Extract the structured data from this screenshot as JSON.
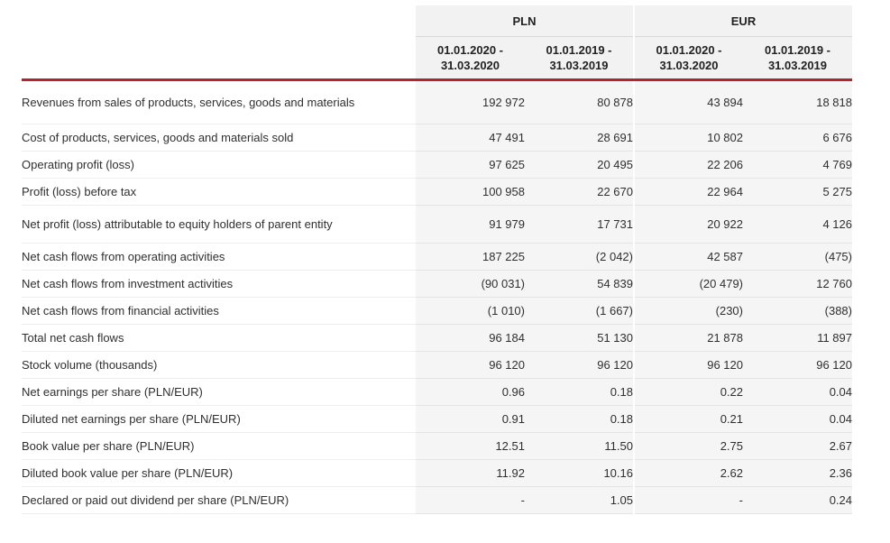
{
  "header": {
    "currency_groups": [
      "PLN",
      "EUR"
    ],
    "periods": [
      {
        "line1": "01.01.2020 -",
        "line2": "31.03.2020"
      },
      {
        "line1": "01.01.2019 -",
        "line2": "31.03.2019"
      },
      {
        "line1": "01.01.2020 -",
        "line2": "31.03.2020"
      },
      {
        "line1": "01.01.2019 -",
        "line2": "31.03.2019"
      }
    ]
  },
  "rows": [
    {
      "label": "Revenues from sales of products, services, goods and materials",
      "values": [
        "192 972",
        "80 878",
        "43 894",
        "18 818"
      ]
    },
    {
      "label": "Cost of products, services, goods and materials sold",
      "values": [
        "47 491",
        "28 691",
        "10 802",
        "6 676"
      ]
    },
    {
      "label": "Operating profit (loss)",
      "values": [
        "97 625",
        "20 495",
        "22 206",
        "4 769"
      ]
    },
    {
      "label": "Profit (loss) before tax",
      "values": [
        "100 958",
        "22 670",
        "22 964",
        "5 275"
      ]
    },
    {
      "label": "Net profit (loss) attributable to equity holders of parent entity",
      "values": [
        "91 979",
        "17 731",
        "20 922",
        "4 126"
      ]
    },
    {
      "label": "Net cash flows from operating activities",
      "values": [
        "187 225",
        "(2 042)",
        "42 587",
        "(475)"
      ]
    },
    {
      "label": "Net cash flows from investment activities",
      "values": [
        "(90 031)",
        "54 839",
        "(20 479)",
        "12 760"
      ]
    },
    {
      "label": "Net cash flows from financial activities",
      "values": [
        "(1 010)",
        "(1 667)",
        "(230)",
        "(388)"
      ]
    },
    {
      "label": "Total net cash flows",
      "values": [
        "96 184",
        "51 130",
        "21 878",
        "11 897"
      ]
    },
    {
      "label": "Stock volume (thousands)",
      "values": [
        "96 120",
        "96 120",
        "96 120",
        "96 120"
      ]
    },
    {
      "label": "Net earnings per share (PLN/EUR)",
      "values": [
        "0.96",
        "0.18",
        "0.22",
        "0.04"
      ]
    },
    {
      "label": "Diluted net earnings per share (PLN/EUR)",
      "values": [
        "0.91",
        "0.18",
        "0.21",
        "0.04"
      ]
    },
    {
      "label": "Book value per share (PLN/EUR)",
      "values": [
        "12.51",
        "11.50",
        "2.75",
        "2.67"
      ]
    },
    {
      "label": "Diluted book value per share (PLN/EUR)",
      "values": [
        "11.92",
        "10.16",
        "2.62",
        "2.36"
      ]
    },
    {
      "label": "Declared or paid out dividend per share (PLN/EUR)",
      "values": [
        "-",
        "1.05",
        "-",
        "0.24"
      ]
    }
  ],
  "colors": {
    "accent_rule": "#b5232f",
    "shaded_column": "#f2f2f2",
    "text": "#2f2f2f"
  }
}
